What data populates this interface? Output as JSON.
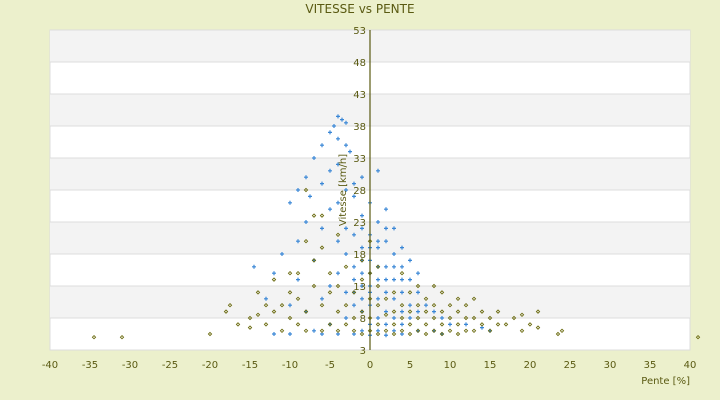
{
  "chart_data": {
    "type": "scatter",
    "title": "VITESSE vs PENTE",
    "xlabel": "Pente [%]",
    "ylabel": "Vitesse [km/h]",
    "xlim": [
      -40,
      40
    ],
    "ylim": [
      3,
      53
    ],
    "xticks": [
      -40,
      -35,
      -30,
      -25,
      -20,
      -15,
      -10,
      -5,
      0,
      5,
      10,
      15,
      20,
      25,
      30,
      35,
      40
    ],
    "yticks": [
      53,
      48,
      43,
      38,
      33,
      28,
      23,
      18,
      13,
      8,
      3
    ],
    "grid": "horizontal alternating bands",
    "legend": "none",
    "series": [
      {
        "color": "#3a87d6",
        "marker": "plus",
        "points": [
          [
            -4,
            39.5
          ],
          [
            -3.5,
            39
          ],
          [
            -4.5,
            38
          ],
          [
            -3,
            38.5
          ],
          [
            -4,
            36
          ],
          [
            -5,
            37
          ],
          [
            -3,
            35
          ],
          [
            -2.5,
            34
          ],
          [
            -6,
            35
          ],
          [
            -7,
            33
          ],
          [
            -8,
            30
          ],
          [
            -10,
            26
          ],
          [
            -9,
            28
          ],
          [
            -7.5,
            27
          ],
          [
            -6,
            29
          ],
          [
            -5,
            31
          ],
          [
            -4,
            32
          ],
          [
            -1,
            30
          ],
          [
            -2,
            29
          ],
          [
            1,
            31
          ],
          [
            -3,
            28
          ],
          [
            -14.5,
            16
          ],
          [
            -12,
            15
          ],
          [
            -11,
            18
          ],
          [
            -9,
            20
          ],
          [
            -8,
            23
          ],
          [
            -6,
            22
          ],
          [
            -5,
            25
          ],
          [
            -4,
            26
          ],
          [
            -2,
            27
          ],
          [
            0,
            26
          ],
          [
            2,
            25
          ],
          [
            -1,
            24
          ],
          [
            1,
            23
          ],
          [
            3,
            22
          ],
          [
            -3,
            22
          ],
          [
            -2,
            21
          ],
          [
            0,
            21
          ],
          [
            2,
            20
          ],
          [
            4,
            19
          ],
          [
            -4,
            20
          ],
          [
            -1,
            19
          ],
          [
            1,
            19
          ],
          [
            3,
            18
          ],
          [
            5,
            17
          ],
          [
            -3,
            18
          ],
          [
            -1,
            17
          ],
          [
            0,
            17
          ],
          [
            2,
            16
          ],
          [
            4,
            16
          ],
          [
            6,
            15
          ],
          [
            -2,
            16
          ],
          [
            -4,
            15
          ],
          [
            0,
            15
          ],
          [
            1,
            14
          ],
          [
            3,
            14
          ],
          [
            5,
            14
          ],
          [
            -2,
            14
          ],
          [
            -1,
            13
          ],
          [
            0,
            13
          ],
          [
            2,
            12
          ],
          [
            4,
            12
          ],
          [
            6,
            12
          ],
          [
            -3,
            12
          ],
          [
            -1,
            11
          ],
          [
            1,
            11
          ],
          [
            3,
            11
          ],
          [
            5,
            10
          ],
          [
            7,
            10
          ],
          [
            -2,
            10
          ],
          [
            0,
            10
          ],
          [
            2,
            9
          ],
          [
            4,
            9
          ],
          [
            6,
            9
          ],
          [
            8,
            9
          ],
          [
            -1,
            9
          ],
          [
            1,
            8
          ],
          [
            3,
            8
          ],
          [
            5,
            8
          ],
          [
            9,
            8
          ],
          [
            -3,
            8
          ],
          [
            0,
            7
          ],
          [
            2,
            7
          ],
          [
            4,
            7
          ],
          [
            10,
            7
          ],
          [
            12,
            7
          ],
          [
            -5,
            7
          ],
          [
            -1,
            6
          ],
          [
            1,
            6
          ],
          [
            3,
            6
          ],
          [
            6,
            6
          ],
          [
            8,
            6
          ],
          [
            14,
            6.5
          ],
          [
            -7,
            6
          ],
          [
            -10,
            5.5
          ],
          [
            -12,
            5.5
          ],
          [
            -2,
            5.5
          ],
          [
            0,
            5.3
          ],
          [
            2,
            5.3
          ],
          [
            4,
            5.5
          ],
          [
            -4,
            5.5
          ],
          [
            -6,
            5.5
          ],
          [
            9,
            5.5
          ],
          [
            15,
            6
          ],
          [
            -8,
            9
          ],
          [
            -10,
            10
          ],
          [
            -6,
            11
          ],
          [
            -5,
            13
          ],
          [
            -9,
            14
          ],
          [
            -7,
            17
          ],
          [
            -13,
            11
          ],
          [
            1,
            20
          ],
          [
            2,
            22
          ],
          [
            0,
            19
          ],
          [
            -1,
            22
          ],
          [
            3,
            16
          ],
          [
            1,
            16
          ],
          [
            -2,
            12
          ],
          [
            2,
            14
          ],
          [
            0,
            12
          ],
          [
            4,
            14
          ],
          [
            -1,
            15
          ]
        ]
      },
      {
        "color": "#6b6b10",
        "marker": "diamond",
        "points": [
          [
            -34.5,
            5
          ],
          [
            -31,
            5
          ],
          [
            -20,
            5.5
          ],
          [
            41,
            5
          ],
          [
            24,
            6
          ],
          [
            23.5,
            5.5
          ],
          [
            21,
            6.5
          ],
          [
            -17.5,
            10
          ],
          [
            -16.5,
            7
          ],
          [
            -15,
            6.5
          ],
          [
            -15,
            8
          ],
          [
            -14,
            8.5
          ],
          [
            -14,
            12
          ],
          [
            -13,
            7
          ],
          [
            -12,
            9
          ],
          [
            -12,
            14
          ],
          [
            -11,
            6
          ],
          [
            -11,
            10
          ],
          [
            -10,
            8
          ],
          [
            -10,
            12
          ],
          [
            -9,
            7
          ],
          [
            -9,
            11
          ],
          [
            -9,
            15
          ],
          [
            -8,
            28
          ],
          [
            -7,
            24
          ],
          [
            -8,
            6
          ],
          [
            -8,
            9
          ],
          [
            -7,
            13
          ],
          [
            -7,
            17
          ],
          [
            -6,
            6
          ],
          [
            -6,
            10
          ],
          [
            -6,
            19
          ],
          [
            -5,
            7
          ],
          [
            -5,
            12
          ],
          [
            -5,
            15
          ],
          [
            -4,
            6
          ],
          [
            -4,
            9
          ],
          [
            -4,
            13
          ],
          [
            -3,
            7
          ],
          [
            -3,
            10
          ],
          [
            -3,
            16
          ],
          [
            -2,
            6
          ],
          [
            -2,
            8
          ],
          [
            -2,
            12
          ],
          [
            -1,
            5.5
          ],
          [
            -1,
            9
          ],
          [
            -1,
            14
          ],
          [
            0,
            6
          ],
          [
            0,
            8
          ],
          [
            0,
            11
          ],
          [
            0,
            20
          ],
          [
            1,
            5.5
          ],
          [
            1,
            7
          ],
          [
            1,
            10
          ],
          [
            1,
            13
          ],
          [
            2,
            6
          ],
          [
            2,
            8.5
          ],
          [
            2,
            11
          ],
          [
            3,
            5.5
          ],
          [
            3,
            7
          ],
          [
            3,
            9
          ],
          [
            3,
            12
          ],
          [
            4,
            6
          ],
          [
            4,
            8
          ],
          [
            4,
            10
          ],
          [
            5,
            5.5
          ],
          [
            5,
            7
          ],
          [
            5,
            9
          ],
          [
            5,
            12
          ],
          [
            6,
            6
          ],
          [
            6,
            8
          ],
          [
            6,
            10
          ],
          [
            7,
            5.5
          ],
          [
            7,
            7
          ],
          [
            7,
            9
          ],
          [
            7,
            11
          ],
          [
            8,
            6
          ],
          [
            8,
            8
          ],
          [
            8,
            10
          ],
          [
            9,
            5.5
          ],
          [
            9,
            7
          ],
          [
            9,
            9
          ],
          [
            10,
            6
          ],
          [
            10,
            8
          ],
          [
            10,
            10
          ],
          [
            11,
            5.5
          ],
          [
            11,
            7
          ],
          [
            11,
            9
          ],
          [
            12,
            6
          ],
          [
            12,
            8
          ],
          [
            12,
            10
          ],
          [
            13,
            6
          ],
          [
            13,
            8
          ],
          [
            14,
            7
          ],
          [
            14,
            9
          ],
          [
            15,
            6
          ],
          [
            15,
            8
          ],
          [
            16,
            7
          ],
          [
            16,
            9
          ],
          [
            17,
            7
          ],
          [
            18,
            8
          ],
          [
            19,
            6
          ],
          [
            19,
            8.5
          ],
          [
            20,
            7
          ],
          [
            21,
            9
          ],
          [
            -18,
            9
          ],
          [
            -13,
            10
          ],
          [
            -10,
            15
          ],
          [
            -8,
            20
          ],
          [
            -6,
            24
          ],
          [
            -4,
            21
          ],
          [
            8,
            13
          ],
          [
            9,
            12
          ],
          [
            6,
            13
          ],
          [
            4,
            15
          ],
          [
            11,
            11
          ],
          [
            13,
            11
          ],
          [
            -1,
            17
          ],
          [
            1,
            16
          ],
          [
            0,
            15
          ]
        ]
      }
    ]
  }
}
